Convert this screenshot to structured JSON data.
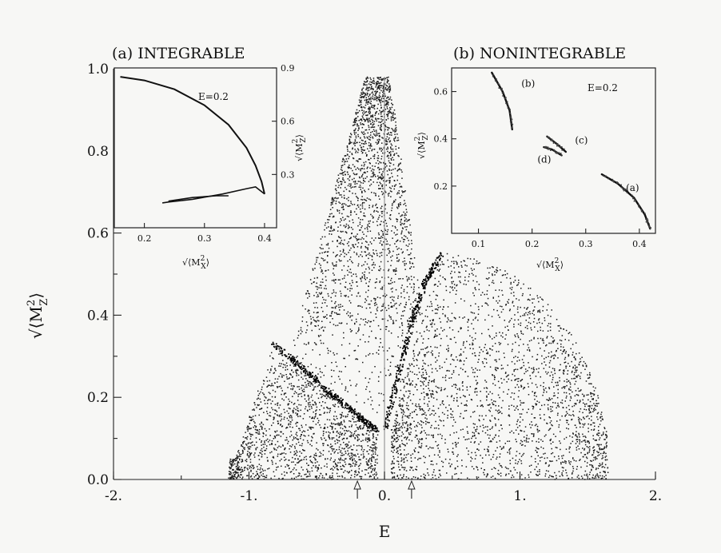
{
  "chart_data": [
    {
      "id": "main",
      "type": "scatter",
      "xlabel": "E",
      "ylabel_text": "√⟨M",
      "ylabel_sub": "Z",
      "ylabel_sup": "2",
      "xlim": [
        -2.0,
        2.0
      ],
      "ylim": [
        0.0,
        1.0
      ],
      "x_tick_labels": [
        "-2.",
        "-1.",
        "0.",
        "1.",
        "2."
      ],
      "x_tick_values": [
        -2,
        -1,
        0,
        1,
        2
      ],
      "y_tick_labels": [
        "0.0",
        "0.2",
        "0.4",
        "0.6",
        "0.8",
        "1.0"
      ],
      "y_tick_values": [
        0.0,
        0.2,
        0.4,
        0.6,
        0.8,
        1.0
      ],
      "markers": [
        {
          "x": -0.2,
          "symbol": "up-arrow"
        },
        {
          "x": 0.2,
          "symbol": "up-arrow"
        }
      ],
      "point_cloud_regions": [
        {
          "name": "upper-wedge",
          "apex": [
            0.0,
            0.98
          ],
          "x_range": [
            -0.8,
            0.35
          ],
          "y_range": [
            0.12,
            0.98
          ],
          "density": 0.8
        },
        {
          "name": "left-lobe",
          "x_range": [
            -1.15,
            -0.05
          ],
          "y_range": [
            0.0,
            0.35
          ],
          "density": 0.6
        },
        {
          "name": "right-lobe",
          "x_range": [
            0.05,
            1.65
          ],
          "y_range": [
            0.0,
            0.56
          ],
          "density": 0.7
        }
      ],
      "dense_curves": [
        {
          "name": "left-band",
          "points": [
            [
              -0.82,
              0.33
            ],
            [
              -0.6,
              0.27
            ],
            [
              -0.4,
              0.21
            ],
            [
              -0.2,
              0.155
            ],
            [
              -0.05,
              0.12
            ]
          ]
        },
        {
          "name": "right-band",
          "points": [
            [
              0.0,
              0.12
            ],
            [
              0.1,
              0.25
            ],
            [
              0.2,
              0.38
            ],
            [
              0.3,
              0.48
            ],
            [
              0.42,
              0.55
            ]
          ]
        }
      ]
    },
    {
      "id": "inset-a",
      "type": "line",
      "title": "(a) INTEGRABLE",
      "annotation": "E=0.2",
      "xlabel_text": "√⟨M",
      "xlabel_sub": "X",
      "xlabel_sup": "2",
      "ylabel_text": "√⟨M",
      "ylabel_sub": "Z",
      "ylabel_sup": "2",
      "xlim": [
        0.15,
        0.42
      ],
      "ylim": [
        0.0,
        0.9
      ],
      "x_tick_labels": [
        "0.2",
        "0.3",
        "0.4"
      ],
      "x_tick_values": [
        0.2,
        0.3,
        0.4
      ],
      "y_tick_labels": [
        "0.3",
        "0.6",
        "0.9"
      ],
      "y_tick_values": [
        0.3,
        0.6,
        0.9
      ],
      "series": [
        {
          "points": [
            [
              0.16,
              0.85
            ],
            [
              0.2,
              0.83
            ],
            [
              0.25,
              0.78
            ],
            [
              0.3,
              0.69
            ],
            [
              0.34,
              0.58
            ],
            [
              0.37,
              0.45
            ],
            [
              0.385,
              0.35
            ],
            [
              0.395,
              0.26
            ],
            [
              0.4,
              0.19
            ]
          ]
        },
        {
          "points": [
            [
              0.4,
              0.19
            ],
            [
              0.385,
              0.23
            ],
            [
              0.37,
              0.22
            ],
            [
              0.33,
              0.19
            ],
            [
              0.28,
              0.16
            ],
            [
              0.24,
              0.145
            ],
            [
              0.23,
              0.14
            ]
          ]
        },
        {
          "points": [
            [
              0.24,
              0.15
            ],
            [
              0.28,
              0.17
            ],
            [
              0.32,
              0.18
            ],
            [
              0.34,
              0.18
            ]
          ]
        }
      ]
    },
    {
      "id": "inset-b",
      "type": "scatter",
      "title": "(b) NONINTEGRABLE",
      "annotation": "E=0.2",
      "xlabel_text": "√⟨M",
      "xlabel_sub": "X",
      "xlabel_sup": "2",
      "ylabel_text": "√⟨M",
      "ylabel_sub": "Z",
      "ylabel_sup": "2",
      "xlim": [
        0.05,
        0.43
      ],
      "ylim": [
        0.0,
        0.7
      ],
      "x_tick_labels": [
        "0.1",
        "0.2",
        "0.3",
        "0.4"
      ],
      "x_tick_values": [
        0.1,
        0.2,
        0.3,
        0.4
      ],
      "y_tick_labels": [
        "0.2",
        "0.4",
        "0.6"
      ],
      "y_tick_values": [
        0.2,
        0.4,
        0.6
      ],
      "series": [
        {
          "name": "(b)",
          "points": [
            [
              0.125,
              0.68
            ],
            [
              0.145,
              0.6
            ],
            [
              0.158,
              0.52
            ],
            [
              0.163,
              0.44
            ]
          ]
        },
        {
          "name": "(c)",
          "points": [
            [
              0.228,
              0.41
            ],
            [
              0.245,
              0.38
            ],
            [
              0.263,
              0.345
            ]
          ]
        },
        {
          "name": "(d)",
          "points": [
            [
              0.222,
              0.365
            ],
            [
              0.237,
              0.355
            ],
            [
              0.255,
              0.33
            ]
          ]
        },
        {
          "name": "(a)",
          "points": [
            [
              0.33,
              0.25
            ],
            [
              0.36,
              0.21
            ],
            [
              0.39,
              0.15
            ],
            [
              0.41,
              0.08
            ],
            [
              0.42,
              0.02
            ]
          ]
        }
      ]
    }
  ]
}
